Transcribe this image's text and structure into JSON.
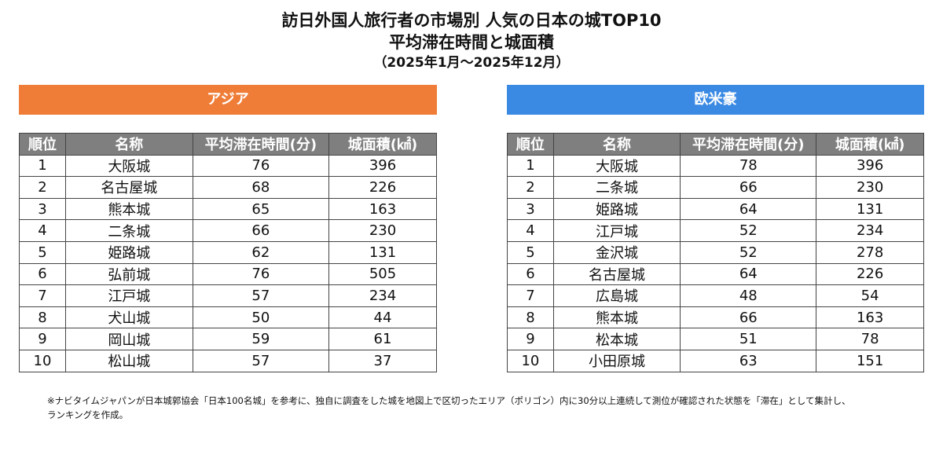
{
  "header": {
    "title": "訪日外国人旅行者の市場別 人気の日本の城TOP10",
    "subtitle": "平均滞在時間と城面積",
    "period": "（2025年1月～2025年12月）"
  },
  "sections": [
    {
      "label": "アジア",
      "color": "#ef7d38",
      "table": {
        "columns": [
          "順位",
          "名称",
          "平均滞在時間(分)",
          "城面積(㎢)"
        ],
        "rows": [
          [
            1,
            "大阪城",
            76,
            396
          ],
          [
            2,
            "名古屋城",
            68,
            226
          ],
          [
            3,
            "熊本城",
            65,
            163
          ],
          [
            4,
            "二条城",
            66,
            230
          ],
          [
            5,
            "姫路城",
            62,
            131
          ],
          [
            6,
            "弘前城",
            76,
            505
          ],
          [
            7,
            "江戸城",
            57,
            234
          ],
          [
            8,
            "犬山城",
            50,
            44
          ],
          [
            9,
            "岡山城",
            59,
            61
          ],
          [
            10,
            "松山城",
            57,
            37
          ]
        ]
      }
    },
    {
      "label": "欧米豪",
      "color": "#3a8ae4",
      "table": {
        "columns": [
          "順位",
          "名称",
          "平均滞在時間(分)",
          "城面積(㎢)"
        ],
        "rows": [
          [
            1,
            "大阪城",
            78,
            396
          ],
          [
            2,
            "二条城",
            66,
            230
          ],
          [
            3,
            "姫路城",
            64,
            131
          ],
          [
            4,
            "江戸城",
            52,
            234
          ],
          [
            5,
            "金沢城",
            52,
            278
          ],
          [
            6,
            "名古屋城",
            64,
            226
          ],
          [
            7,
            "広島城",
            48,
            54
          ],
          [
            8,
            "熊本城",
            66,
            163
          ],
          [
            9,
            "松本城",
            51,
            78
          ],
          [
            10,
            "小田原城",
            63,
            151
          ]
        ]
      }
    }
  ],
  "footnote": [
    "※ナビタイムジャパンが日本城郭協会「日本100名城」を参考に、独自に調査をした城を地図上で区切ったエリア（ポリゴン）内に30分以上連続して測位が確認された状態を「滞在」として集計し、",
    "ランキングを作成。"
  ]
}
